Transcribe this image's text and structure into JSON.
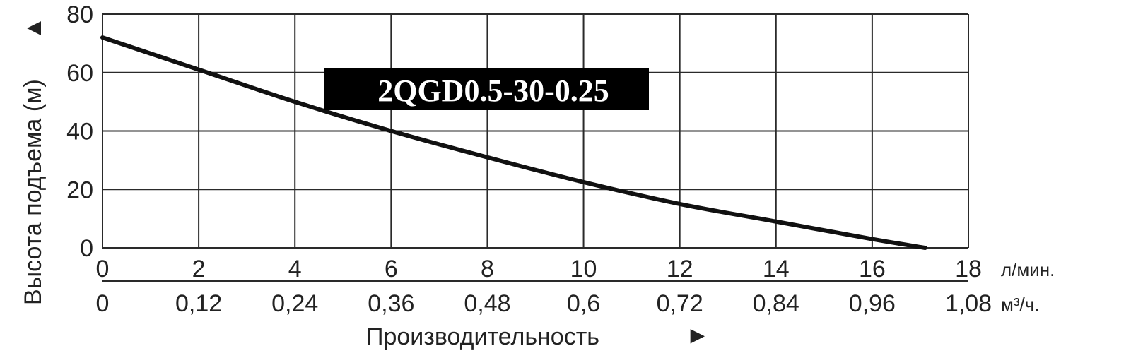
{
  "chart_data": {
    "type": "line",
    "title": "",
    "model_label": "2QGD0.5-30-0.25",
    "ylabel": "Высота подъема (м)",
    "ylabel_arrow": "▲",
    "xlabel": "Производительность",
    "xlabel_arrow": "►",
    "xlim": [
      0,
      18
    ],
    "ylim": [
      0,
      80
    ],
    "grid": true,
    "x_ticks": [
      "0",
      "2",
      "4",
      "6",
      "8",
      "10",
      "12",
      "14",
      "16",
      "18"
    ],
    "x_unit": "л/мин.",
    "x2_ticks": [
      "0",
      "0,12",
      "0,24",
      "0,36",
      "0,48",
      "0,6",
      "0,72",
      "0,84",
      "0,96",
      "1,08"
    ],
    "x2_unit": "м³/ч.",
    "y_ticks": [
      "0",
      "20",
      "40",
      "60",
      "80"
    ],
    "series": [
      {
        "x": [
          0,
          2,
          4,
          6,
          8,
          10,
          12,
          14,
          16,
          17.1
        ],
        "y": [
          72,
          61,
          50,
          40,
          31,
          22.5,
          15,
          9,
          3,
          0
        ]
      }
    ],
    "colors": {
      "line": "#111111",
      "grid": "#2a2a2a",
      "label_bg": "#000000",
      "label_text": "#ffffff"
    }
  }
}
